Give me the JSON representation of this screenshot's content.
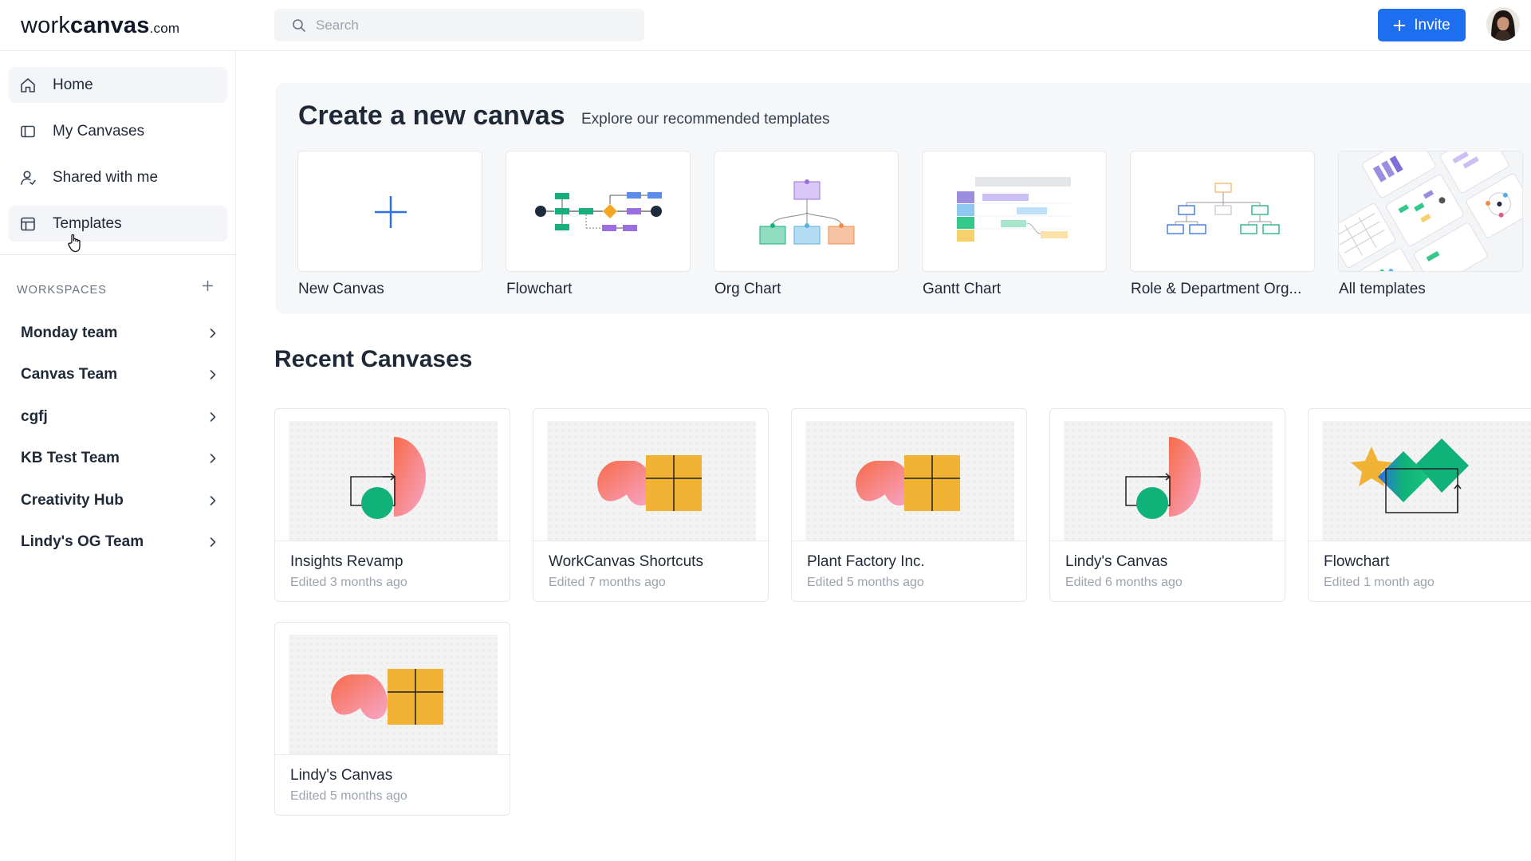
{
  "header": {
    "logo_work": "work",
    "logo_canvas": "canvas",
    "logo_com": ".com",
    "search_placeholder": "Search",
    "invite_label": "Invite"
  },
  "sidebar": {
    "nav": [
      {
        "label": "Home",
        "icon": "home-icon",
        "active": true
      },
      {
        "label": "My Canvases",
        "icon": "canvas-icon",
        "active": false
      },
      {
        "label": "Shared with me",
        "icon": "user-icon",
        "active": false
      },
      {
        "label": "Templates",
        "icon": "template-icon",
        "active": true
      }
    ],
    "workspaces_title": "WORKSPACES",
    "workspaces": [
      {
        "label": "Monday team"
      },
      {
        "label": "Canvas Team"
      },
      {
        "label": "cgfj"
      },
      {
        "label": "KB Test Team"
      },
      {
        "label": "Creativity Hub"
      },
      {
        "label": "Lindy's OG Team"
      }
    ]
  },
  "templates": {
    "heading": "Create a new canvas",
    "subheading": "Explore our recommended templates",
    "items": [
      {
        "label": "New Canvas"
      },
      {
        "label": "Flowchart"
      },
      {
        "label": "Org Chart"
      },
      {
        "label": "Gantt Chart"
      },
      {
        "label": "Role & Department Org..."
      },
      {
        "label": "All templates"
      }
    ]
  },
  "recent": {
    "heading": "Recent Canvases",
    "items": [
      {
        "title": "Insights Revamp",
        "edited": "Edited 3 months ago"
      },
      {
        "title": "WorkCanvas Shortcuts",
        "edited": "Edited 7 months ago"
      },
      {
        "title": "Plant Factory Inc.",
        "edited": "Edited 5 months ago"
      },
      {
        "title": "Lindy's Canvas",
        "edited": "Edited 6 months ago"
      },
      {
        "title": "Flowchart",
        "edited": "Edited 1 month ago"
      },
      {
        "title": "Lindy's Canvas",
        "edited": "Edited 5 months ago"
      }
    ]
  },
  "colors": {
    "accent": "#1e6ff0",
    "sidebar_active_bg": "#f3f5f8",
    "panel_bg": "#f6f7f9"
  }
}
